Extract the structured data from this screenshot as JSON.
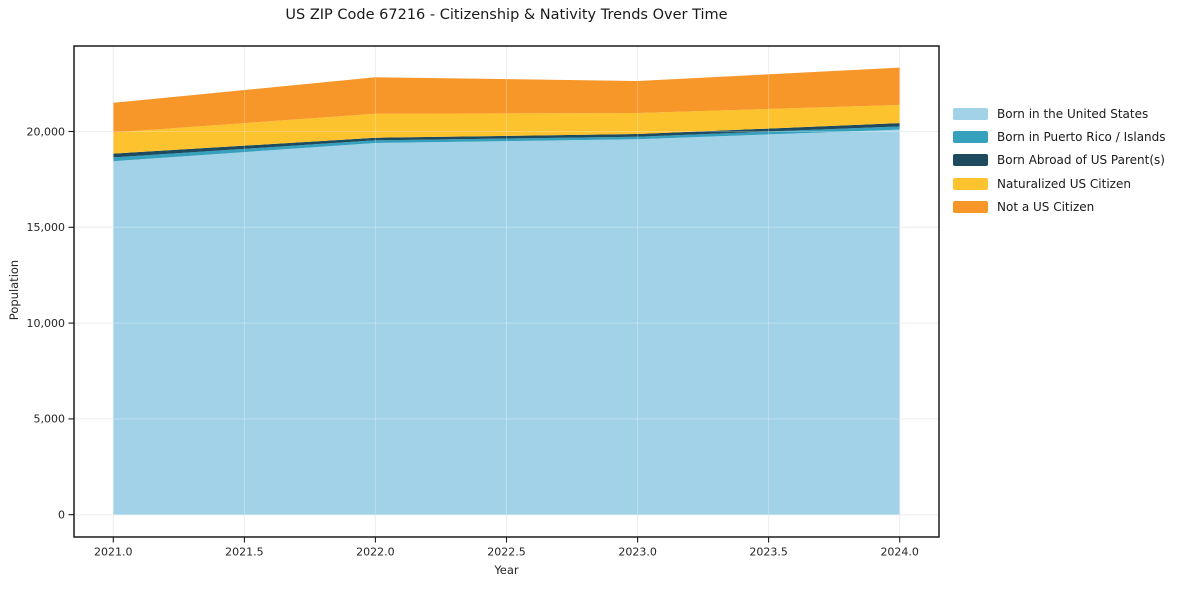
{
  "title": "US ZIP Code 67216 - Citizenship & Nativity Trends Over Time",
  "chart_data": {
    "type": "area",
    "stacked": true,
    "title": "US ZIP Code 67216 - Citizenship & Nativity Trends Over Time",
    "xlabel": "Year",
    "ylabel": "Population",
    "x": [
      2021,
      2022,
      2023,
      2024
    ],
    "series": [
      {
        "name": "Born in the United States",
        "color": "#a2d2e8",
        "values": [
          18450,
          19400,
          19600,
          20100
        ]
      },
      {
        "name": "Born in Puerto Rico / Islands",
        "color": "#35a1bd",
        "values": [
          200,
          140,
          130,
          170
        ]
      },
      {
        "name": "Born Abroad of US Parent(s)",
        "color": "#1d4a5e",
        "values": [
          200,
          140,
          140,
          170
        ]
      },
      {
        "name": "Naturalized US Citizen",
        "color": "#fcc32f",
        "values": [
          1100,
          1250,
          1100,
          950
        ]
      },
      {
        "name": "Not a US Citizen",
        "color": "#f79629",
        "values": [
          1550,
          1900,
          1670,
          1950
        ]
      }
    ],
    "totals": [
      21500,
      22830,
      22640,
      23340
    ],
    "xlim": [
      2020.85,
      2024.15
    ],
    "ylim": [
      -1165,
      24465
    ],
    "x_ticks": [
      2021.0,
      2021.5,
      2022.0,
      2022.5,
      2023.0,
      2023.5,
      2024.0
    ],
    "x_tick_labels": [
      "2021.0",
      "2021.5",
      "2022.0",
      "2022.5",
      "2023.0",
      "2023.5",
      "2024.0"
    ],
    "y_ticks": [
      0,
      5000,
      10000,
      15000,
      20000
    ],
    "y_tick_labels": [
      "0",
      "5,000",
      "10,000",
      "15,000",
      "20,000"
    ],
    "grid": true,
    "legend_position": "outside-right"
  },
  "colors": {
    "background": "#ffffff",
    "grid": "#e8e8e8",
    "grid_overlay": "rgba(255,255,255,0.28)",
    "spine": "#1a1a1a",
    "tick_text": "#262626"
  }
}
